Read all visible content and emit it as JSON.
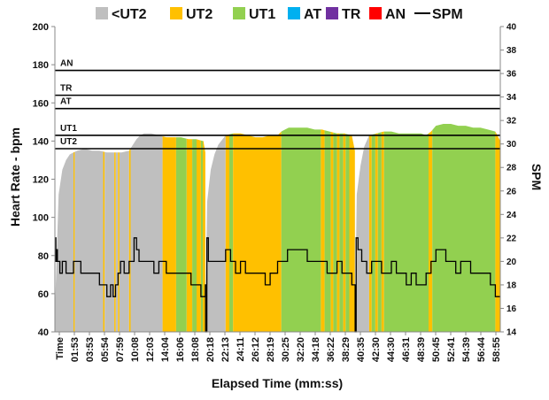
{
  "chart_data": {
    "type": "area",
    "title": "",
    "xlabel": "Elapsed Time (mm:ss)",
    "ylabel": "Heart Rate - bpm",
    "y2label": "SPM",
    "ylim": [
      40,
      200
    ],
    "yticks": [
      40,
      60,
      80,
      100,
      120,
      140,
      160,
      180,
      200
    ],
    "y2lim": [
      14,
      40
    ],
    "y2ticks": [
      14,
      16,
      18,
      20,
      22,
      24,
      26,
      28,
      30,
      32,
      34,
      36,
      38,
      40
    ],
    "xlim_seconds": [
      0,
      3600
    ],
    "x_tick_labels": [
      "Time",
      "01:53",
      "03:53",
      "05:54",
      "07:59",
      "10:08",
      "12:03",
      "14:04",
      "16:06",
      "18:08",
      "20:18",
      "22:13",
      "24:11",
      "26:12",
      "28:19",
      "30:25",
      "32:20",
      "34:18",
      "36:22",
      "38:29",
      "40:35",
      "42:30",
      "44:30",
      "46:31",
      "48:39",
      "50:45",
      "52:41",
      "54:39",
      "56:44",
      "58:55"
    ],
    "legend": [
      {
        "name": "<UT2",
        "color": "#bfbfbf",
        "kind": "box"
      },
      {
        "name": "UT2",
        "color": "#ffc000",
        "kind": "box"
      },
      {
        "name": "UT1",
        "color": "#92d050",
        "kind": "box"
      },
      {
        "name": "AT",
        "color": "#00b0f0",
        "kind": "box"
      },
      {
        "name": "TR",
        "color": "#7030a0",
        "kind": "box"
      },
      {
        "name": "AN",
        "color": "#ff0000",
        "kind": "box"
      },
      {
        "name": "SPM",
        "color": "#000000",
        "kind": "line"
      }
    ],
    "zones": [
      {
        "name": "AN",
        "threshold_bpm": 177
      },
      {
        "name": "TR",
        "threshold_bpm": 164
      },
      {
        "name": "AT",
        "threshold_bpm": 157
      },
      {
        "name": "UT1",
        "threshold_bpm": 143
      },
      {
        "name": "UT2",
        "threshold_bpm": 136
      }
    ],
    "zone_colors": {
      "lt_ut2": "#bfbfbf",
      "ut2": "#ffc000",
      "ut1": "#92d050"
    },
    "heart_rate_series": {
      "name": "Heart Rate",
      "x_seconds": [
        0,
        30,
        60,
        90,
        120,
        150,
        180,
        240,
        300,
        360,
        420,
        480,
        540,
        600,
        630,
        660,
        690,
        720,
        780,
        840,
        900,
        960,
        1020,
        1080,
        1140,
        1200,
        1216,
        1218,
        1230,
        1260,
        1290,
        1320,
        1380,
        1440,
        1500,
        1560,
        1620,
        1680,
        1740,
        1800,
        1830,
        1860,
        1890,
        1920,
        1980,
        2040,
        2100,
        2160,
        2220,
        2280,
        2340,
        2400,
        2425,
        2427,
        2440,
        2470,
        2500,
        2540,
        2600,
        2660,
        2720,
        2780,
        2840,
        2900,
        2960,
        3000,
        3040,
        3080,
        3140,
        3200,
        3260,
        3320,
        3380,
        3440,
        3500,
        3560,
        3600
      ],
      "bpm": [
        50,
        112,
        125,
        130,
        133,
        134,
        135,
        136,
        135,
        135,
        134,
        134,
        134,
        135,
        138,
        141,
        143,
        144,
        144,
        143,
        142,
        142,
        142,
        141,
        141,
        140,
        134,
        52,
        108,
        125,
        133,
        138,
        143,
        144,
        144,
        143,
        142,
        142,
        143,
        143,
        145,
        146,
        147,
        147,
        147,
        147,
        146,
        146,
        145,
        144,
        144,
        143,
        135,
        52,
        112,
        127,
        137,
        143,
        144,
        145,
        145,
        144,
        144,
        144,
        144,
        143,
        145,
        148,
        149,
        149,
        148,
        148,
        147,
        147,
        146,
        145,
        140
      ]
    },
    "zone_segments": [
      {
        "start": 0,
        "end": 150,
        "zone": "lt_ut2"
      },
      {
        "start": 150,
        "end": 160,
        "zone": "ut2"
      },
      {
        "start": 160,
        "end": 390,
        "zone": "lt_ut2"
      },
      {
        "start": 390,
        "end": 402,
        "zone": "ut2"
      },
      {
        "start": 402,
        "end": 480,
        "zone": "lt_ut2"
      },
      {
        "start": 480,
        "end": 492,
        "zone": "ut2"
      },
      {
        "start": 492,
        "end": 510,
        "zone": "lt_ut2"
      },
      {
        "start": 510,
        "end": 522,
        "zone": "ut2"
      },
      {
        "start": 522,
        "end": 600,
        "zone": "lt_ut2"
      },
      {
        "start": 600,
        "end": 612,
        "zone": "ut2"
      },
      {
        "start": 612,
        "end": 870,
        "zone": "lt_ut2"
      },
      {
        "start": 870,
        "end": 980,
        "zone": "ut2"
      },
      {
        "start": 980,
        "end": 1065,
        "zone": "ut1"
      },
      {
        "start": 1065,
        "end": 1110,
        "zone": "ut2"
      },
      {
        "start": 1110,
        "end": 1145,
        "zone": "ut1"
      },
      {
        "start": 1145,
        "end": 1180,
        "zone": "ut2"
      },
      {
        "start": 1180,
        "end": 1195,
        "zone": "ut1"
      },
      {
        "start": 1195,
        "end": 1216,
        "zone": "ut2"
      },
      {
        "start": 1216,
        "end": 1380,
        "zone": "lt_ut2"
      },
      {
        "start": 1380,
        "end": 1410,
        "zone": "ut2"
      },
      {
        "start": 1410,
        "end": 1440,
        "zone": "ut1"
      },
      {
        "start": 1440,
        "end": 1830,
        "zone": "ut2"
      },
      {
        "start": 1830,
        "end": 2150,
        "zone": "ut1"
      },
      {
        "start": 2150,
        "end": 2180,
        "zone": "ut2"
      },
      {
        "start": 2180,
        "end": 2230,
        "zone": "ut1"
      },
      {
        "start": 2230,
        "end": 2250,
        "zone": "ut2"
      },
      {
        "start": 2250,
        "end": 2280,
        "zone": "ut1"
      },
      {
        "start": 2280,
        "end": 2300,
        "zone": "ut2"
      },
      {
        "start": 2300,
        "end": 2330,
        "zone": "ut1"
      },
      {
        "start": 2330,
        "end": 2350,
        "zone": "ut2"
      },
      {
        "start": 2350,
        "end": 2380,
        "zone": "ut1"
      },
      {
        "start": 2380,
        "end": 2425,
        "zone": "ut2"
      },
      {
        "start": 2425,
        "end": 2540,
        "zone": "lt_ut2"
      },
      {
        "start": 2540,
        "end": 2560,
        "zone": "ut2"
      },
      {
        "start": 2560,
        "end": 2590,
        "zone": "ut1"
      },
      {
        "start": 2590,
        "end": 2610,
        "zone": "ut2"
      },
      {
        "start": 2610,
        "end": 2640,
        "zone": "ut1"
      },
      {
        "start": 2640,
        "end": 2660,
        "zone": "ut2"
      },
      {
        "start": 2660,
        "end": 3020,
        "zone": "ut1"
      },
      {
        "start": 3020,
        "end": 3050,
        "zone": "ut2"
      },
      {
        "start": 3050,
        "end": 3560,
        "zone": "ut1"
      },
      {
        "start": 3560,
        "end": 3600,
        "zone": "ut2"
      }
    ],
    "spm_series": {
      "name": "SPM",
      "x_seconds": [
        0,
        3,
        8,
        12,
        20,
        40,
        60,
        90,
        120,
        150,
        180,
        210,
        240,
        270,
        300,
        330,
        360,
        390,
        420,
        450,
        470,
        490,
        500,
        510,
        530,
        560,
        600,
        630,
        640,
        660,
        680,
        720,
        760,
        800,
        840,
        870,
        900,
        940,
        970,
        1000,
        1030,
        1060,
        1100,
        1140,
        1180,
        1216,
        1218,
        1228,
        1240,
        1300,
        1340,
        1380,
        1420,
        1460,
        1500,
        1540,
        1580,
        1620,
        1660,
        1700,
        1740,
        1780,
        1800,
        1840,
        1880,
        1920,
        1960,
        2000,
        2040,
        2080,
        2120,
        2160,
        2200,
        2240,
        2280,
        2320,
        2360,
        2400,
        2425,
        2427,
        2435,
        2450,
        2480,
        2520,
        2560,
        2600,
        2640,
        2680,
        2720,
        2760,
        2800,
        2840,
        2880,
        2920,
        2960,
        3000,
        3040,
        3080,
        3120,
        3160,
        3200,
        3240,
        3280,
        3320,
        3360,
        3400,
        3440,
        3480,
        3520,
        3560,
        3600
      ],
      "spm": [
        22,
        22,
        20,
        21,
        20,
        19,
        20,
        19,
        19,
        20,
        20,
        19,
        19,
        19,
        19,
        19,
        18,
        18,
        17,
        18,
        17,
        18,
        18,
        19,
        20,
        19,
        20,
        20,
        22,
        21,
        20,
        20,
        20,
        19,
        20,
        20,
        19,
        19,
        19,
        19,
        19,
        19,
        18,
        18,
        17,
        18,
        14,
        22,
        20,
        20,
        20,
        21,
        20,
        19,
        20,
        19,
        19,
        19,
        19,
        18,
        19,
        19,
        20,
        20,
        21,
        21,
        21,
        21,
        20,
        20,
        20,
        20,
        19,
        19,
        20,
        19,
        19,
        18,
        18,
        14,
        22,
        21,
        20,
        19,
        20,
        20,
        19,
        19,
        20,
        19,
        19,
        18,
        19,
        18,
        18,
        19,
        20,
        21,
        21,
        20,
        20,
        19,
        20,
        20,
        19,
        19,
        19,
        19,
        18,
        17,
        17
      ]
    }
  }
}
